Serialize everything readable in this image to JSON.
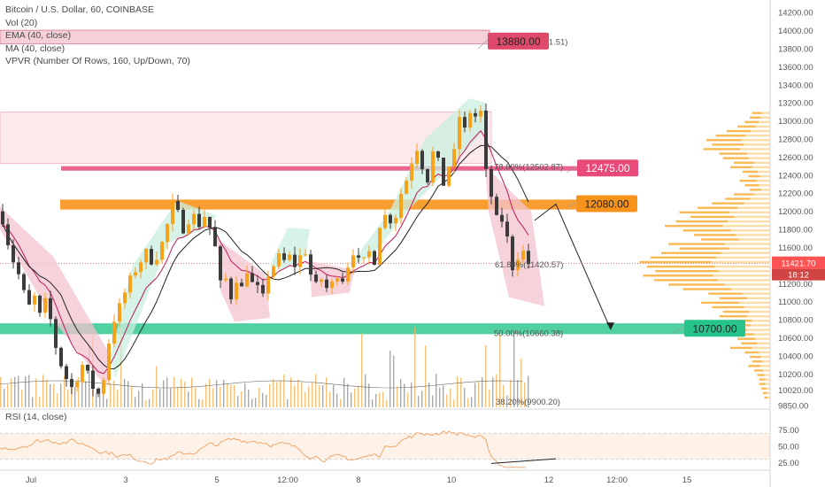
{
  "header": {
    "symbol": "Bitcoin / U.S. Dollar, 60, COINBASE",
    "indicators": [
      "Vol (20)",
      "EMA (40, close)",
      "MA (40, close)",
      "VPVR (Number Of Rows, 160, Up/Down, 70)"
    ]
  },
  "rsi_label": "RSI (14, close)",
  "colors": {
    "up": "#f7a21b",
    "down": "#3b3b3b",
    "ema": "#c2185b",
    "ma": "#222222",
    "green_zone": "#26c48a",
    "orange_zone": "#f7931a",
    "pink_zone": "#e84a7a",
    "rsi": "#f0a060",
    "price_tag": "#ff5252"
  },
  "chart_data": {
    "type": "candlestick",
    "y_axis": {
      "range": [
        9850,
        14300
      ],
      "ticks": [
        "14200.00",
        "14000.00",
        "13800.00",
        "13600.00",
        "13400.00",
        "13200.00",
        "13000.00",
        "12800.00",
        "12600.00",
        "12400.00",
        "12200.00",
        "12000.00",
        "11800.00",
        "11600.00",
        "11400.00",
        "11200.00",
        "11000.00",
        "10800.00",
        "10600.00",
        "10400.00",
        "10200.00",
        "10020.00",
        "9850.00"
      ]
    },
    "x_axis": {
      "ticks": [
        "Jul",
        "3",
        "5",
        "12:00",
        "8",
        "10",
        "12",
        "12:00",
        "15"
      ]
    },
    "last_price": "11421.70",
    "countdown": "18:12",
    "levels": [
      {
        "label": "13880.00",
        "price": 13880,
        "kind": "resistance"
      },
      {
        "label": "12475.00",
        "price": 12475,
        "kind": "resistance"
      },
      {
        "label": "12080.00",
        "price": 12080,
        "kind": "resistance"
      },
      {
        "label": "10700.00",
        "price": 10700,
        "kind": "support"
      }
    ],
    "fib_levels": [
      {
        "label": "100.00%(13881.51)",
        "price": 13881.51
      },
      {
        "label": "78.60%(12502.87)",
        "price": 12502.87
      },
      {
        "label": "61.80%(11420.57)",
        "price": 11420.57
      },
      {
        "label": "50.00%(10660.38)",
        "price": 10660.38
      },
      {
        "label": "38.20%(9900.20)",
        "price": 9900.2
      }
    ],
    "projection": [
      11900,
      12080,
      10690
    ],
    "price_path": [
      [
        0,
        12000
      ],
      [
        6,
        11900
      ],
      [
        12,
        11650
      ],
      [
        18,
        11450
      ],
      [
        24,
        11300
      ],
      [
        30,
        11100
      ],
      [
        36,
        10950
      ],
      [
        42,
        11050
      ],
      [
        48,
        10850
      ],
      [
        54,
        11000
      ],
      [
        60,
        10800
      ],
      [
        66,
        10500
      ],
      [
        72,
        10300
      ],
      [
        78,
        10150
      ],
      [
        84,
        10050
      ],
      [
        90,
        10150
      ],
      [
        96,
        10300
      ],
      [
        102,
        10200
      ],
      [
        108,
        10050
      ],
      [
        114,
        9980
      ],
      [
        120,
        10150
      ],
      [
        126,
        10550
      ],
      [
        132,
        10800
      ],
      [
        138,
        10950
      ],
      [
        144,
        11100
      ],
      [
        150,
        11250
      ],
      [
        156,
        11350
      ],
      [
        162,
        11450
      ],
      [
        168,
        11550
      ],
      [
        174,
        11450
      ],
      [
        180,
        11500
      ],
      [
        186,
        11650
      ],
      [
        192,
        11850
      ],
      [
        198,
        12080
      ],
      [
        204,
        11980
      ],
      [
        210,
        11800
      ],
      [
        216,
        11900
      ],
      [
        222,
        11950
      ],
      [
        228,
        11850
      ],
      [
        234,
        11950
      ],
      [
        240,
        11820
      ],
      [
        246,
        11600
      ],
      [
        252,
        11200
      ],
      [
        258,
        11250
      ],
      [
        264,
        11050
      ],
      [
        270,
        11250
      ],
      [
        276,
        11150
      ],
      [
        282,
        11350
      ],
      [
        288,
        11200
      ],
      [
        294,
        11150
      ],
      [
        300,
        11050
      ],
      [
        306,
        11300
      ],
      [
        312,
        11400
      ],
      [
        318,
        11500
      ],
      [
        324,
        11450
      ],
      [
        330,
        11500
      ],
      [
        336,
        11400
      ],
      [
        342,
        11500
      ],
      [
        348,
        11550
      ],
      [
        354,
        11300
      ],
      [
        360,
        11180
      ],
      [
        366,
        11250
      ],
      [
        372,
        11150
      ],
      [
        378,
        11200
      ],
      [
        384,
        11300
      ],
      [
        390,
        11250
      ],
      [
        396,
        11400
      ],
      [
        402,
        11550
      ],
      [
        408,
        11450
      ],
      [
        414,
        11450
      ],
      [
        420,
        11550
      ],
      [
        426,
        11450
      ],
      [
        432,
        11850
      ],
      [
        438,
        11950
      ],
      [
        444,
        11900
      ],
      [
        450,
        11950
      ],
      [
        456,
        12200
      ],
      [
        462,
        12350
      ],
      [
        468,
        12550
      ],
      [
        474,
        12700
      ],
      [
        480,
        12500
      ],
      [
        486,
        12350
      ],
      [
        492,
        12650
      ],
      [
        498,
        12550
      ],
      [
        504,
        12300
      ],
      [
        510,
        12500
      ],
      [
        516,
        12650
      ],
      [
        522,
        13050
      ],
      [
        528,
        12900
      ],
      [
        534,
        13100
      ],
      [
        540,
        13050
      ],
      [
        546,
        13100
      ],
      [
        550,
        12500
      ],
      [
        556,
        12300
      ],
      [
        562,
        11900
      ],
      [
        568,
        11950
      ],
      [
        574,
        11800
      ],
      [
        580,
        11500
      ],
      [
        584,
        11250
      ],
      [
        588,
        11500
      ],
      [
        594,
        11550
      ],
      [
        600,
        11420
      ]
    ],
    "vpvr_profile": [
      [
        13100,
        25
      ],
      [
        13050,
        28
      ],
      [
        13000,
        35
      ],
      [
        12950,
        45
      ],
      [
        12900,
        60
      ],
      [
        12850,
        75
      ],
      [
        12800,
        88
      ],
      [
        12750,
        80
      ],
      [
        12700,
        92
      ],
      [
        12650,
        70
      ],
      [
        12600,
        65
      ],
      [
        12550,
        50
      ],
      [
        12500,
        55
      ],
      [
        12450,
        38
      ],
      [
        12400,
        30
      ],
      [
        12350,
        42
      ],
      [
        12300,
        35
      ],
      [
        12250,
        28
      ],
      [
        12200,
        50
      ],
      [
        12150,
        62
      ],
      [
        12100,
        80
      ],
      [
        12050,
        100
      ],
      [
        12000,
        125
      ],
      [
        11950,
        110
      ],
      [
        11900,
        130
      ],
      [
        11850,
        145
      ],
      [
        11800,
        120
      ],
      [
        11750,
        105
      ],
      [
        11700,
        95
      ],
      [
        11650,
        140
      ],
      [
        11600,
        125
      ],
      [
        11550,
        150
      ],
      [
        11500,
        165
      ],
      [
        11450,
        180
      ],
      [
        11400,
        170
      ],
      [
        11350,
        158
      ],
      [
        11300,
        175
      ],
      [
        11250,
        160
      ],
      [
        11200,
        140
      ],
      [
        11150,
        120
      ],
      [
        11100,
        85
      ],
      [
        11050,
        70
      ],
      [
        11000,
        95
      ],
      [
        10950,
        80
      ],
      [
        10900,
        65
      ],
      [
        10850,
        70
      ],
      [
        10800,
        55
      ],
      [
        10750,
        60
      ],
      [
        10700,
        72
      ],
      [
        10650,
        50
      ],
      [
        10600,
        45
      ],
      [
        10550,
        40
      ],
      [
        10500,
        55
      ],
      [
        10450,
        35
      ],
      [
        10400,
        28
      ],
      [
        10350,
        25
      ],
      [
        10300,
        30
      ],
      [
        10250,
        22
      ],
      [
        10200,
        18
      ],
      [
        10150,
        15
      ],
      [
        10100,
        15
      ],
      [
        10050,
        12
      ],
      [
        10000,
        10
      ],
      [
        9950,
        8
      ]
    ],
    "rsi": {
      "ticks": [
        "75.00",
        "50.00",
        "25.00"
      ],
      "range": [
        15,
        85
      ],
      "band": [
        30,
        70
      ]
    }
  }
}
